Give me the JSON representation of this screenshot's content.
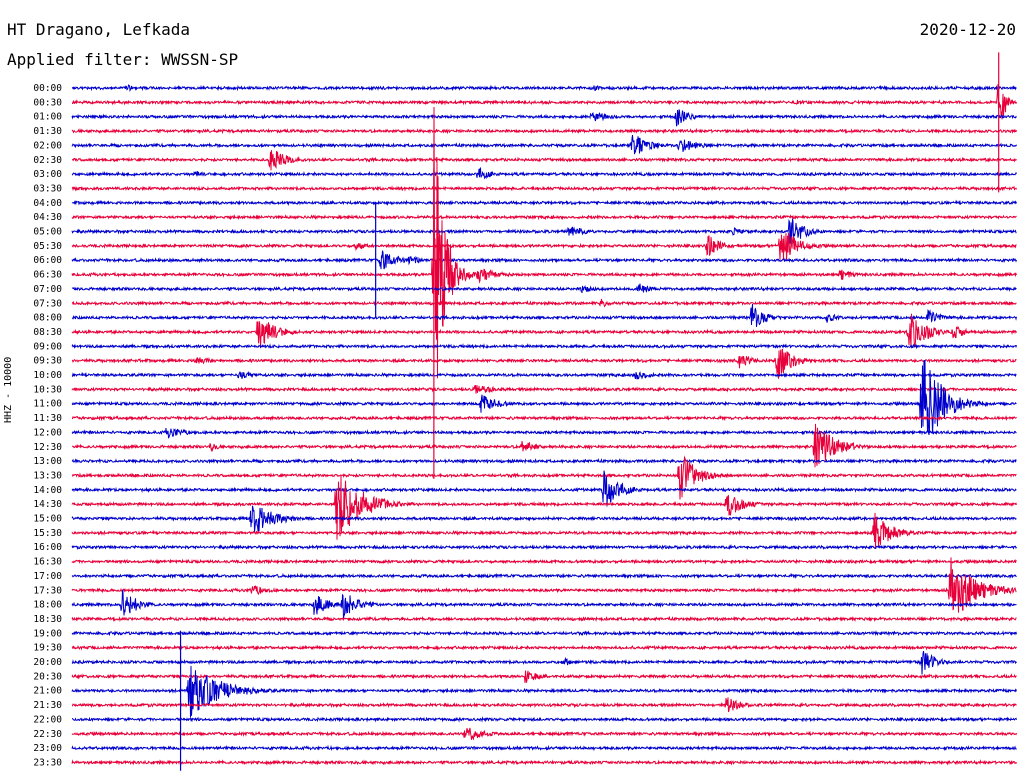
{
  "header": {
    "title": "HT Dragano, Lefkada",
    "filter": "Applied filter: WWSSN-SP",
    "date": "2020-12-20"
  },
  "channel_label": "HHZ - 10000",
  "colors": {
    "blue": "#0000cc",
    "red": "#e8003a",
    "text": "#000000"
  },
  "chart_data": {
    "type": "line",
    "subtype": "helicorder",
    "title": "HT Dragano, Lefkada",
    "subtitle": "Applied filter: WWSSN-SP",
    "date": "2020-12-20",
    "ylabel": "HHZ - 10000",
    "row_labels": [
      "00:00",
      "00:30",
      "01:00",
      "01:30",
      "02:00",
      "02:30",
      "03:00",
      "03:30",
      "04:00",
      "04:30",
      "05:00",
      "05:30",
      "06:00",
      "06:30",
      "07:00",
      "07:30",
      "08:00",
      "08:30",
      "09:00",
      "09:30",
      "10:00",
      "10:30",
      "11:00",
      "11:30",
      "12:00",
      "12:30",
      "13:00",
      "13:30",
      "14:00",
      "14:30",
      "15:00",
      "15:30",
      "16:00",
      "16:30",
      "17:00",
      "17:30",
      "18:00",
      "18:30",
      "19:00",
      "19:30",
      "20:00",
      "20:30",
      "21:00",
      "21:30",
      "22:00",
      "22:30",
      "23:00",
      "23:30"
    ],
    "row_colors": [
      "blue",
      "red"
    ],
    "x_range_minutes": [
      0,
      30
    ],
    "events": [
      {
        "row": 0,
        "minute": 1.75,
        "amp": 4,
        "dur": 0.4
      },
      {
        "row": 0,
        "minute": 16.6,
        "amp": 3,
        "dur": 0.5
      },
      {
        "row": 1,
        "minute": 23.0,
        "amp": 4,
        "dur": 0.4
      },
      {
        "row": 1,
        "minute": 29.45,
        "amp": 38,
        "dur": 0.3
      },
      {
        "row": 2,
        "minute": 16.5,
        "amp": 6,
        "dur": 1.2
      },
      {
        "row": 2,
        "minute": 19.2,
        "amp": 10,
        "dur": 0.8
      },
      {
        "row": 4,
        "minute": 17.8,
        "amp": 14,
        "dur": 0.9
      },
      {
        "row": 4,
        "minute": 19.3,
        "amp": 8,
        "dur": 1.2
      },
      {
        "row": 5,
        "minute": 6.3,
        "amp": 14,
        "dur": 0.9
      },
      {
        "row": 6,
        "minute": 3.9,
        "amp": 4,
        "dur": 0.6
      },
      {
        "row": 6,
        "minute": 12.9,
        "amp": 7,
        "dur": 0.8
      },
      {
        "row": 10,
        "minute": 15.8,
        "amp": 7,
        "dur": 0.9
      },
      {
        "row": 10,
        "minute": 21.0,
        "amp": 4,
        "dur": 0.8
      },
      {
        "row": 10,
        "minute": 22.8,
        "amp": 16,
        "dur": 0.9
      },
      {
        "row": 11,
        "minute": 9.0,
        "amp": 5,
        "dur": 0.8
      },
      {
        "row": 11,
        "minute": 20.2,
        "amp": 12,
        "dur": 0.7
      },
      {
        "row": 11,
        "minute": 22.5,
        "amp": 22,
        "dur": 1.0
      },
      {
        "row": 12,
        "minute": 9.8,
        "amp": 12,
        "dur": 0.9
      },
      {
        "row": 12,
        "minute": 10.7,
        "amp": 6,
        "dur": 0.6
      },
      {
        "row": 13,
        "minute": 11.5,
        "amp": 170,
        "dur": 0.6
      },
      {
        "row": 13,
        "minute": 12.9,
        "amp": 8,
        "dur": 1.2
      },
      {
        "row": 13,
        "minute": 24.4,
        "amp": 7,
        "dur": 0.7
      },
      {
        "row": 14,
        "minute": 16.2,
        "amp": 5,
        "dur": 0.8
      },
      {
        "row": 14,
        "minute": 18.0,
        "amp": 6,
        "dur": 0.8
      },
      {
        "row": 15,
        "minute": 16.8,
        "amp": 5,
        "dur": 0.6
      },
      {
        "row": 16,
        "minute": 21.6,
        "amp": 14,
        "dur": 0.8
      },
      {
        "row": 16,
        "minute": 24.0,
        "amp": 6,
        "dur": 0.6
      },
      {
        "row": 16,
        "minute": 27.2,
        "amp": 8,
        "dur": 0.8
      },
      {
        "row": 17,
        "minute": 5.9,
        "amp": 20,
        "dur": 1.0
      },
      {
        "row": 17,
        "minute": 26.6,
        "amp": 22,
        "dur": 1.0
      },
      {
        "row": 17,
        "minute": 28.0,
        "amp": 8,
        "dur": 0.7
      },
      {
        "row": 19,
        "minute": 3.9,
        "amp": 5,
        "dur": 1.0
      },
      {
        "row": 19,
        "minute": 21.2,
        "amp": 8,
        "dur": 0.8
      },
      {
        "row": 19,
        "minute": 22.4,
        "amp": 20,
        "dur": 0.9
      },
      {
        "row": 20,
        "minute": 5.3,
        "amp": 6,
        "dur": 0.8
      },
      {
        "row": 20,
        "minute": 17.9,
        "amp": 6,
        "dur": 0.8
      },
      {
        "row": 21,
        "minute": 12.8,
        "amp": 5,
        "dur": 1.5
      },
      {
        "row": 22,
        "minute": 13.0,
        "amp": 10,
        "dur": 1.0
      },
      {
        "row": 22,
        "minute": 27.0,
        "amp": 55,
        "dur": 1.2
      },
      {
        "row": 24,
        "minute": 3.0,
        "amp": 6,
        "dur": 1.2
      },
      {
        "row": 25,
        "minute": 4.4,
        "amp": 4,
        "dur": 0.7
      },
      {
        "row": 25,
        "minute": 14.3,
        "amp": 6,
        "dur": 1.0
      },
      {
        "row": 25,
        "minute": 23.6,
        "amp": 25,
        "dur": 1.2
      },
      {
        "row": 28,
        "minute": 16.9,
        "amp": 22,
        "dur": 0.9
      },
      {
        "row": 27,
        "minute": 19.3,
        "amp": 26,
        "dur": 1.0
      },
      {
        "row": 29,
        "minute": 8.4,
        "amp": 38,
        "dur": 1.5
      },
      {
        "row": 29,
        "minute": 20.8,
        "amp": 14,
        "dur": 1.0
      },
      {
        "row": 30,
        "minute": 5.7,
        "amp": 20,
        "dur": 1.3
      },
      {
        "row": 31,
        "minute": 25.5,
        "amp": 22,
        "dur": 1.0
      },
      {
        "row": 35,
        "minute": 27.9,
        "amp": 36,
        "dur": 1.5
      },
      {
        "row": 35,
        "minute": 5.7,
        "amp": 6,
        "dur": 1.0
      },
      {
        "row": 36,
        "minute": 1.6,
        "amp": 18,
        "dur": 0.8
      },
      {
        "row": 36,
        "minute": 7.7,
        "amp": 12,
        "dur": 0.9
      },
      {
        "row": 36,
        "minute": 8.6,
        "amp": 16,
        "dur": 0.9
      },
      {
        "row": 40,
        "minute": 15.6,
        "amp": 5,
        "dur": 0.6
      },
      {
        "row": 40,
        "minute": 27.0,
        "amp": 14,
        "dur": 0.8
      },
      {
        "row": 41,
        "minute": 14.4,
        "amp": 7,
        "dur": 0.8
      },
      {
        "row": 42,
        "minute": 3.7,
        "amp": 30,
        "dur": 1.8
      },
      {
        "row": 43,
        "minute": 20.8,
        "amp": 9,
        "dur": 0.8
      },
      {
        "row": 45,
        "minute": 12.5,
        "amp": 9,
        "dur": 1.0
      }
    ],
    "large_event": {
      "row": 42,
      "minute": 3.45,
      "amp": 110,
      "dur": 0.3
    }
  }
}
